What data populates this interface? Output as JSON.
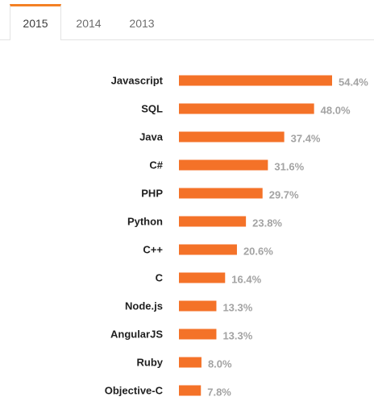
{
  "tabs": [
    {
      "label": "2015",
      "active": true
    },
    {
      "label": "2014",
      "active": false
    },
    {
      "label": "2013",
      "active": false
    }
  ],
  "colors": {
    "accent": "#f48024",
    "bar": "#f47228",
    "value_text": "#a3a3a3",
    "label_text": "#1f1f1f"
  },
  "chart_data": {
    "type": "bar",
    "orientation": "horizontal",
    "categories": [
      "Javascript",
      "SQL",
      "Java",
      "C#",
      "PHP",
      "Python",
      "C++",
      "C",
      "Node.js",
      "AngularJS",
      "Ruby",
      "Objective-C"
    ],
    "values": [
      54.4,
      48.0,
      37.4,
      31.6,
      29.7,
      23.8,
      20.6,
      16.4,
      13.3,
      13.3,
      8.0,
      7.8
    ],
    "value_labels": [
      "54.4%",
      "48.0%",
      "37.4%",
      "31.6%",
      "29.7%",
      "23.8%",
      "20.6%",
      "16.4%",
      "13.3%",
      "13.3%",
      "8.0%",
      "7.8%"
    ],
    "unit": "%",
    "title": "",
    "xlabel": "",
    "ylabel": "",
    "grid": false,
    "legend": "none"
  }
}
